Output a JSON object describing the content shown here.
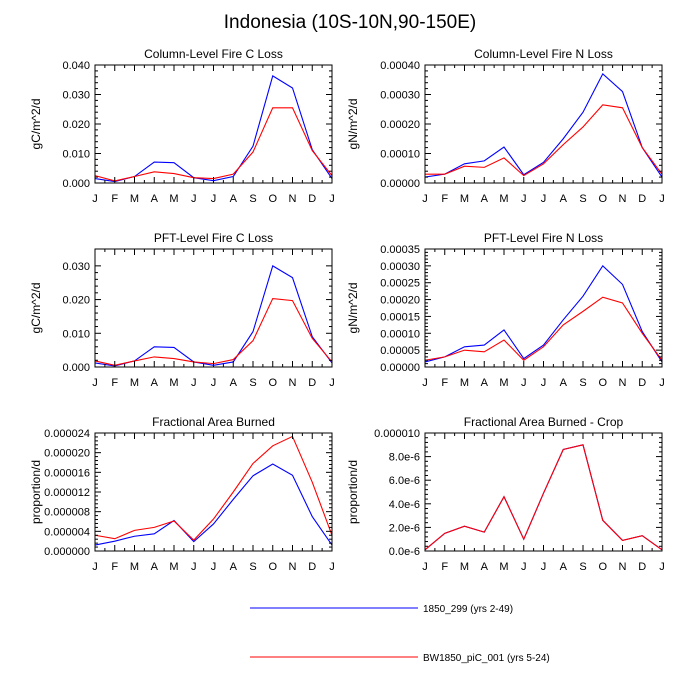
{
  "figure_title": "Indonesia (10S-10N,90-150E)",
  "colors": {
    "series1": "#0000ff",
    "series2": "#ff0000",
    "axis": "#000000"
  },
  "legend": [
    {
      "name": "1850_299 (yrs 2-49)",
      "color": "#0000ff"
    },
    {
      "name": "BW1850_piC_001 (yrs 5-24)",
      "color": "#ff0000"
    }
  ],
  "chart_data": [
    {
      "type": "line",
      "title": "Column-Level Fire C Loss",
      "ylabel": "gC/m^2/d",
      "xlabel": "",
      "categories": [
        "J",
        "F",
        "M",
        "A",
        "M",
        "J",
        "J",
        "A",
        "S",
        "O",
        "N",
        "D",
        "J"
      ],
      "ylim": [
        0,
        0.04
      ],
      "yticks": [
        0,
        0.01,
        0.02,
        0.03,
        0.04
      ],
      "ytick_labels": [
        "0.000",
        "0.010",
        "0.020",
        "0.030",
        "0.040"
      ],
      "series": [
        {
          "name": "1850_299 (yrs 2-49)",
          "color": "#0000ff",
          "values": [
            0.0015,
            0.0005,
            0.0022,
            0.0071,
            0.0069,
            0.0018,
            0.0008,
            0.0022,
            0.0125,
            0.0363,
            0.0322,
            0.0113,
            0.0015
          ]
        },
        {
          "name": "BW1850_piC_001 (yrs 5-24)",
          "color": "#ff0000",
          "values": [
            0.0025,
            0.0007,
            0.0022,
            0.0038,
            0.0032,
            0.0018,
            0.0015,
            0.003,
            0.0105,
            0.0255,
            0.0255,
            0.011,
            0.0025
          ]
        }
      ]
    },
    {
      "type": "line",
      "title": "Column-Level Fire N Loss",
      "ylabel": "gN/m^2/d",
      "xlabel": "",
      "categories": [
        "J",
        "F",
        "M",
        "A",
        "M",
        "J",
        "J",
        "A",
        "S",
        "O",
        "N",
        "D",
        "J"
      ],
      "ylim": [
        0,
        0.0004
      ],
      "yticks": [
        0,
        0.0001,
        0.0002,
        0.0003,
        0.0004
      ],
      "ytick_labels": [
        "0.00000",
        "0.00010",
        "0.00020",
        "0.00030",
        "0.00040"
      ],
      "series": [
        {
          "name": "1850_299 (yrs 2-49)",
          "color": "#0000ff",
          "values": [
            2e-05,
            3e-05,
            6.5e-05,
            7.5e-05,
            0.000122,
            2.8e-05,
            7e-05,
            0.00015,
            0.00024,
            0.00037,
            0.00031,
            0.00012,
            2e-05
          ]
        },
        {
          "name": "BW1850_piC_001 (yrs 5-24)",
          "color": "#ff0000",
          "values": [
            3e-05,
            3e-05,
            5.7e-05,
            5.3e-05,
            8.5e-05,
            2.5e-05,
            6.5e-05,
            0.00013,
            0.00019,
            0.000265,
            0.000255,
            0.00012,
            3e-05
          ]
        }
      ]
    },
    {
      "type": "line",
      "title": "PFT-Level Fire C Loss",
      "ylabel": "gC/m^2/d",
      "xlabel": "",
      "categories": [
        "J",
        "F",
        "M",
        "A",
        "M",
        "J",
        "J",
        "A",
        "S",
        "O",
        "N",
        "D",
        "J"
      ],
      "ylim": [
        0,
        0.035
      ],
      "yticks": [
        0,
        0.01,
        0.02,
        0.03
      ],
      "ytick_labels": [
        "0.000",
        "0.010",
        "0.020",
        "0.030"
      ],
      "series": [
        {
          "name": "1850_299 (yrs 2-49)",
          "color": "#0000ff",
          "values": [
            0.0012,
            0.0003,
            0.0018,
            0.006,
            0.0058,
            0.0015,
            0.0005,
            0.0015,
            0.0105,
            0.03,
            0.0265,
            0.009,
            0.0012
          ]
        },
        {
          "name": "BW1850_piC_001 (yrs 5-24)",
          "color": "#ff0000",
          "values": [
            0.0018,
            0.0005,
            0.0018,
            0.003,
            0.0025,
            0.0015,
            0.001,
            0.0022,
            0.0078,
            0.0203,
            0.0197,
            0.0085,
            0.0015
          ]
        }
      ]
    },
    {
      "type": "line",
      "title": "PFT-Level Fire N Loss",
      "ylabel": "gN/m^2/d",
      "xlabel": "",
      "categories": [
        "J",
        "F",
        "M",
        "A",
        "M",
        "J",
        "J",
        "A",
        "S",
        "O",
        "N",
        "D",
        "J"
      ],
      "ylim": [
        0,
        0.00035
      ],
      "yticks": [
        0,
        5e-05,
        0.0001,
        0.00015,
        0.0002,
        0.00025,
        0.0003,
        0.00035
      ],
      "ytick_labels": [
        "0.00000",
        "0.00005",
        "0.00010",
        "0.00015",
        "0.00020",
        "0.00025",
        "0.00030",
        "0.00035"
      ],
      "series": [
        {
          "name": "1850_299 (yrs 2-49)",
          "color": "#0000ff",
          "values": [
            1.5e-05,
            3e-05,
            6e-05,
            6.5e-05,
            0.00011,
            2.5e-05,
            6.5e-05,
            0.00014,
            0.00021,
            0.0003,
            0.000245,
            0.000105,
            1.5e-05
          ]
        },
        {
          "name": "BW1850_piC_001 (yrs 5-24)",
          "color": "#ff0000",
          "values": [
            2e-05,
            3e-05,
            5e-05,
            4.5e-05,
            8e-05,
            2e-05,
            6e-05,
            0.000125,
            0.000165,
            0.000207,
            0.00019,
            0.0001,
            2e-05
          ]
        }
      ]
    },
    {
      "type": "line",
      "title": "Fractional Area Burned",
      "ylabel": "proportion/d",
      "xlabel": "",
      "categories": [
        "J",
        "F",
        "M",
        "A",
        "M",
        "J",
        "J",
        "A",
        "S",
        "O",
        "N",
        "D",
        "J"
      ],
      "ylim": [
        0,
        2.4e-05
      ],
      "yticks": [
        0,
        4e-06,
        8e-06,
        1.2e-05,
        1.6e-05,
        2e-05,
        2.4e-05
      ],
      "ytick_labels": [
        "0.000000",
        "0.000004",
        "0.000008",
        "0.000012",
        "0.000016",
        "0.000020",
        "0.000024"
      ],
      "series": [
        {
          "name": "1850_299 (yrs 2-49)",
          "color": "#0000ff",
          "values": [
            1.2e-06,
            2e-06,
            3e-06,
            3.5e-06,
            6.2e-06,
            1.9e-06,
            5.5e-06,
            1.05e-05,
            1.53e-05,
            1.77e-05,
            1.54e-05,
            7e-06,
            1.2e-06
          ]
        },
        {
          "name": "BW1850_piC_001 (yrs 5-24)",
          "color": "#ff0000",
          "values": [
            3.2e-06,
            2.5e-06,
            4.2e-06,
            4.8e-06,
            6.1e-06,
            2.2e-06,
            6.5e-06,
            1.2e-05,
            1.78e-05,
            2.14e-05,
            2.33e-05,
            1.4e-05,
            3.2e-06
          ]
        }
      ]
    },
    {
      "type": "line",
      "title": "Fractional Area Burned - Crop",
      "ylabel": "proportion/d",
      "xlabel": "",
      "categories": [
        "J",
        "F",
        "M",
        "A",
        "M",
        "J",
        "J",
        "A",
        "S",
        "O",
        "N",
        "D",
        "J"
      ],
      "ylim": [
        0,
        1e-05
      ],
      "yticks": [
        0,
        2e-06,
        4e-06,
        6e-06,
        8e-06,
        1e-05
      ],
      "ytick_labels": [
        "0.0e-6",
        "2.0e-6",
        "4.0e-6",
        "6.0e-6",
        "8.0e-6",
        "0.000010"
      ],
      "series": [
        {
          "name": "1850_299 (yrs 2-49)",
          "color": "#0000ff",
          "values": [
            1e-07,
            1.5e-06,
            2.1e-06,
            1.6e-06,
            4.6e-06,
            1e-06,
            4.9e-06,
            8.6e-06,
            9e-06,
            2.6e-06,
            9e-07,
            1.3e-06,
            1e-07
          ]
        },
        {
          "name": "BW1850_piC_001 (yrs 5-24)",
          "color": "#ff0000",
          "values": [
            1e-07,
            1.5e-06,
            2.1e-06,
            1.6e-06,
            4.6e-06,
            1e-06,
            4.9e-06,
            8.6e-06,
            9e-06,
            2.6e-06,
            9e-07,
            1.3e-06,
            1e-07
          ]
        }
      ]
    }
  ]
}
